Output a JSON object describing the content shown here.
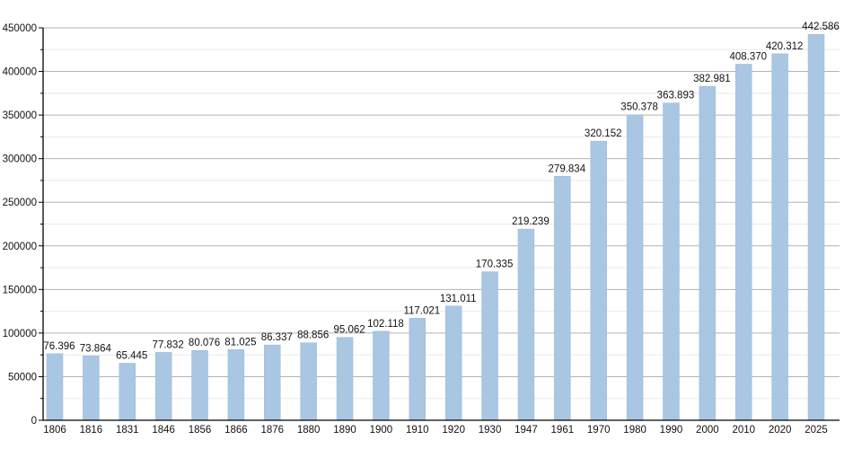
{
  "chart_data": {
    "type": "bar",
    "title": "",
    "xlabel": "",
    "ylabel": "",
    "categories": [
      "1806",
      "1816",
      "1831",
      "1846",
      "1856",
      "1866",
      "1876",
      "1880",
      "1890",
      "1900",
      "1910",
      "1920",
      "1930",
      "1947",
      "1961",
      "1970",
      "1980",
      "1990",
      "2000",
      "2010",
      "2020",
      "2025"
    ],
    "values": [
      76396,
      73864,
      65445,
      77832,
      80076,
      81025,
      86337,
      88856,
      95062,
      102118,
      117021,
      131011,
      170335,
      219239,
      279834,
      320152,
      350378,
      363893,
      382981,
      408370,
      420312,
      442586
    ],
    "value_labels": [
      "76.396",
      "73.864",
      "65.445",
      "77.832",
      "80.076",
      "81.025",
      "86.337",
      "88.856",
      "95.062",
      "102.118",
      "117.021",
      "131.011",
      "170.335",
      "219.239",
      "279.834",
      "320.152",
      "350.378",
      "363.893",
      "382.981",
      "408.370",
      "420.312",
      "442.586"
    ],
    "ylim": [
      0,
      450000
    ],
    "y_major_step": 50000,
    "y_minor_step": 25000,
    "y_tick_labels": [
      "0",
      "50000",
      "100000",
      "150000",
      "200000",
      "250000",
      "300000",
      "350000",
      "400000",
      "450000"
    ],
    "grid": true,
    "legend": "none",
    "colors": {
      "bar_fill": "#a9c6e2",
      "bar_edge": "#9dbbd9",
      "major_grid": "#b3b3b3",
      "minor_grid": "#e9e9e9",
      "axis": "#000000",
      "text": "#111111"
    }
  }
}
